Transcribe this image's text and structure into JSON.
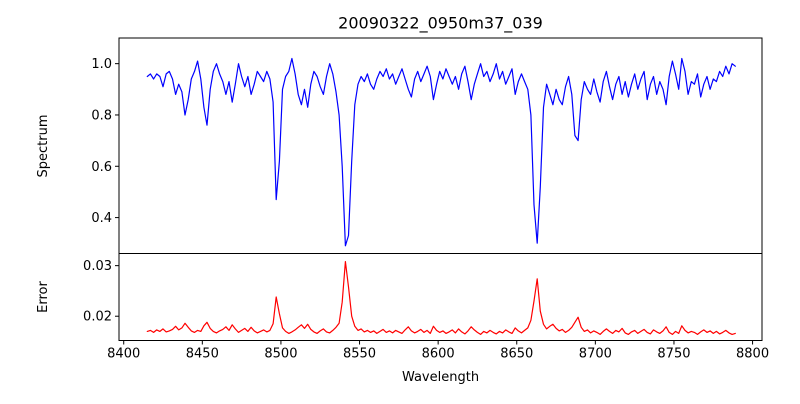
{
  "labels": {
    "title": "20090322_0950m37_039",
    "xlabel": "Wavelength",
    "ylabel_spectrum": "Spectrum",
    "ylabel_error": "Error"
  },
  "colors": {
    "spectrum_line": "#0000ff",
    "error_line": "#ff0000",
    "axes": "#000000",
    "background": "#ffffff"
  },
  "chart_data": [
    {
      "type": "line",
      "panel": "top",
      "series_name": "Spectrum",
      "color": "#0000ff",
      "xlim": [
        8397,
        8806
      ],
      "ylim": [
        0.26,
        1.1
      ],
      "yticks": [
        1.0,
        0.8,
        0.6,
        0.4
      ],
      "ytick_labels": [
        "1.0",
        "0.8",
        "0.6",
        "0.4"
      ],
      "grid": false,
      "legend": "none",
      "notable_features": "Ca II triplet absorption lines near 8498 (depth ~0.47), 8542 (depth ~0.29), 8662 (depth ~0.30); Fe I line near 8688 (depth ~0.70); continuum ~0.95-1.0",
      "x_start": 8415,
      "x_step": 2,
      "values": [
        0.95,
        0.96,
        0.94,
        0.96,
        0.95,
        0.91,
        0.96,
        0.97,
        0.94,
        0.88,
        0.92,
        0.89,
        0.8,
        0.86,
        0.94,
        0.97,
        1.01,
        0.94,
        0.83,
        0.76,
        0.9,
        0.97,
        1.0,
        0.96,
        0.93,
        0.88,
        0.93,
        0.85,
        0.92,
        1.0,
        0.95,
        0.91,
        0.95,
        0.88,
        0.92,
        0.97,
        0.95,
        0.93,
        0.97,
        0.94,
        0.85,
        0.47,
        0.62,
        0.9,
        0.95,
        0.97,
        1.02,
        0.96,
        0.88,
        0.84,
        0.9,
        0.83,
        0.92,
        0.97,
        0.95,
        0.91,
        0.88,
        0.95,
        1.0,
        0.96,
        0.89,
        0.8,
        0.6,
        0.29,
        0.33,
        0.62,
        0.84,
        0.92,
        0.95,
        0.93,
        0.96,
        0.92,
        0.9,
        0.94,
        0.97,
        0.95,
        0.98,
        0.94,
        0.96,
        0.92,
        0.95,
        0.98,
        0.94,
        0.9,
        0.87,
        0.94,
        0.97,
        0.93,
        0.96,
        0.99,
        0.95,
        0.86,
        0.92,
        0.97,
        0.94,
        0.98,
        0.95,
        0.92,
        0.95,
        0.9,
        0.96,
        0.99,
        0.93,
        0.86,
        0.92,
        0.96,
        1.0,
        0.95,
        0.97,
        0.93,
        0.96,
        1.0,
        0.94,
        0.97,
        0.92,
        0.95,
        0.98,
        0.88,
        0.93,
        0.96,
        0.93,
        0.9,
        0.8,
        0.45,
        0.3,
        0.52,
        0.83,
        0.92,
        0.88,
        0.84,
        0.9,
        0.86,
        0.84,
        0.91,
        0.95,
        0.88,
        0.72,
        0.7,
        0.86,
        0.93,
        0.9,
        0.88,
        0.94,
        0.89,
        0.85,
        0.93,
        0.97,
        0.91,
        0.86,
        0.92,
        0.95,
        0.88,
        0.93,
        0.87,
        0.92,
        0.96,
        0.9,
        0.94,
        0.97,
        0.86,
        0.92,
        0.95,
        0.88,
        0.93,
        0.9,
        0.84,
        0.95,
        1.01,
        0.96,
        0.9,
        1.02,
        0.97,
        0.88,
        0.93,
        0.92,
        0.96,
        0.87,
        0.92,
        0.95,
        0.9,
        0.94,
        0.93,
        0.97,
        0.95,
        0.99,
        0.96,
        1.0,
        0.99
      ]
    },
    {
      "type": "line",
      "panel": "bottom",
      "series_name": "Error",
      "color": "#ff0000",
      "xlim": [
        8397,
        8806
      ],
      "ylim": [
        0.0152,
        0.0324
      ],
      "yticks": [
        0.03,
        0.02
      ],
      "ytick_labels": [
        "0.03",
        "0.02"
      ],
      "xticks": [
        8400,
        8450,
        8500,
        8550,
        8600,
        8650,
        8700,
        8750,
        8800
      ],
      "xtick_labels": [
        "8400",
        "8450",
        "8500",
        "8550",
        "8600",
        "8650",
        "8700",
        "8750",
        "8800"
      ],
      "grid": false,
      "legend": "none",
      "notable_features": "baseline ~0.017 with peaks at 8498 (~0.024), 8542 (~0.031), 8662 (~0.027), 8688 (~0.020)",
      "x_start": 8415,
      "x_step": 2,
      "values": [
        0.017,
        0.0172,
        0.0168,
        0.0173,
        0.017,
        0.0175,
        0.0169,
        0.0171,
        0.0174,
        0.018,
        0.0173,
        0.0177,
        0.0186,
        0.0178,
        0.0171,
        0.0168,
        0.0172,
        0.017,
        0.0181,
        0.0188,
        0.0176,
        0.017,
        0.0167,
        0.0171,
        0.0174,
        0.0179,
        0.0172,
        0.0183,
        0.0175,
        0.0168,
        0.0172,
        0.0176,
        0.017,
        0.0178,
        0.0171,
        0.0167,
        0.017,
        0.0173,
        0.0169,
        0.0172,
        0.0185,
        0.0238,
        0.0205,
        0.0177,
        0.017,
        0.0166,
        0.0169,
        0.0173,
        0.0178,
        0.0183,
        0.0176,
        0.0184,
        0.0174,
        0.0169,
        0.0166,
        0.0171,
        0.0175,
        0.0169,
        0.0167,
        0.0172,
        0.0178,
        0.0186,
        0.0228,
        0.0308,
        0.0258,
        0.02,
        0.018,
        0.0172,
        0.0175,
        0.0169,
        0.0172,
        0.0168,
        0.0171,
        0.0166,
        0.017,
        0.0174,
        0.0168,
        0.0171,
        0.0167,
        0.0172,
        0.0169,
        0.0166,
        0.0173,
        0.0179,
        0.0171,
        0.0167,
        0.017,
        0.0174,
        0.0168,
        0.0172,
        0.0166,
        0.018,
        0.0172,
        0.0168,
        0.0171,
        0.0166,
        0.0169,
        0.0173,
        0.0167,
        0.0175,
        0.0169,
        0.0165,
        0.0171,
        0.0179,
        0.0173,
        0.0168,
        0.0164,
        0.017,
        0.0167,
        0.0172,
        0.0168,
        0.0165,
        0.017,
        0.0167,
        0.0173,
        0.0169,
        0.0166,
        0.0177,
        0.0171,
        0.0167,
        0.0172,
        0.0177,
        0.0192,
        0.023,
        0.0274,
        0.021,
        0.0184,
        0.0175,
        0.018,
        0.0184,
        0.0176,
        0.0171,
        0.0174,
        0.0168,
        0.0172,
        0.0178,
        0.0188,
        0.0198,
        0.0178,
        0.017,
        0.0173,
        0.0167,
        0.0171,
        0.0168,
        0.0164,
        0.017,
        0.0175,
        0.017,
        0.0166,
        0.0172,
        0.0169,
        0.0176,
        0.0167,
        0.0164,
        0.0169,
        0.0172,
        0.0166,
        0.017,
        0.0174,
        0.0168,
        0.0165,
        0.0173,
        0.0169,
        0.0166,
        0.0171,
        0.0179,
        0.0168,
        0.0164,
        0.017,
        0.0166,
        0.0181,
        0.0172,
        0.0167,
        0.017,
        0.0168,
        0.0164,
        0.0169,
        0.0173,
        0.0168,
        0.0171,
        0.0166,
        0.017,
        0.0165,
        0.0168,
        0.0172,
        0.0167,
        0.0164,
        0.0166
      ]
    }
  ]
}
